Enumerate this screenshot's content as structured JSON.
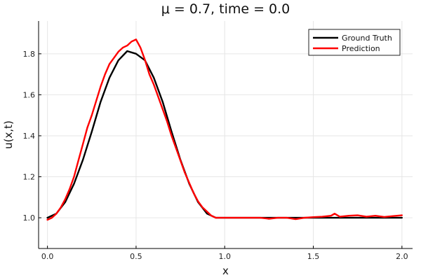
{
  "chart_data": {
    "type": "line",
    "title": "μ = 0.7, time = 0.0",
    "xlabel": "x",
    "ylabel": "u(x,t)",
    "xlim": [
      -0.05,
      2.06
    ],
    "ylim": [
      0.85,
      1.96
    ],
    "xticks": [
      0.0,
      0.5,
      1.0,
      1.5,
      2.0
    ],
    "xtick_labels": [
      "0.0",
      "0.5",
      "1.0",
      "1.5",
      "2.0"
    ],
    "yticks": [
      1.0,
      1.2,
      1.4,
      1.6,
      1.8
    ],
    "ytick_labels": [
      "1.0",
      "1.2",
      "1.4",
      "1.6",
      "1.8"
    ],
    "grid": true,
    "legend_position": "top-right",
    "series": [
      {
        "name": "Ground Truth",
        "color": "#000000",
        "x": [
          0.0,
          0.05,
          0.1,
          0.15,
          0.2,
          0.25,
          0.3,
          0.35,
          0.4,
          0.45,
          0.5,
          0.55,
          0.6,
          0.65,
          0.7,
          0.75,
          0.8,
          0.85,
          0.9,
          0.95,
          1.0,
          1.1,
          1.2,
          1.3,
          1.4,
          1.5,
          1.6,
          1.7,
          1.8,
          1.9,
          2.0
        ],
        "values": [
          1.0,
          1.02,
          1.076,
          1.166,
          1.283,
          1.42,
          1.566,
          1.683,
          1.768,
          1.813,
          1.8,
          1.768,
          1.683,
          1.566,
          1.42,
          1.283,
          1.166,
          1.076,
          1.02,
          1.0,
          1.0,
          1.0,
          1.0,
          1.0,
          1.0,
          1.0,
          1.0,
          1.0,
          1.0,
          1.0,
          1.0
        ]
      },
      {
        "name": "Prediction",
        "color": "#ff0000",
        "x": [
          0.0,
          0.025,
          0.05,
          0.075,
          0.1,
          0.125,
          0.15,
          0.175,
          0.2,
          0.225,
          0.25,
          0.275,
          0.3,
          0.325,
          0.35,
          0.375,
          0.4,
          0.425,
          0.45,
          0.475,
          0.5,
          0.525,
          0.55,
          0.575,
          0.6,
          0.625,
          0.65,
          0.675,
          0.7,
          0.725,
          0.75,
          0.775,
          0.8,
          0.825,
          0.85,
          0.875,
          0.9,
          0.925,
          0.95,
          0.975,
          1.0,
          1.05,
          1.1,
          1.15,
          1.2,
          1.25,
          1.3,
          1.35,
          1.4,
          1.45,
          1.5,
          1.55,
          1.6,
          1.62,
          1.65,
          1.7,
          1.75,
          1.8,
          1.85,
          1.9,
          1.95,
          2.0
        ],
        "values": [
          0.99,
          1.0,
          1.02,
          1.05,
          1.09,
          1.14,
          1.2,
          1.28,
          1.36,
          1.44,
          1.5,
          1.57,
          1.64,
          1.7,
          1.75,
          1.78,
          1.81,
          1.83,
          1.84,
          1.86,
          1.87,
          1.83,
          1.77,
          1.7,
          1.65,
          1.59,
          1.53,
          1.47,
          1.4,
          1.34,
          1.28,
          1.22,
          1.17,
          1.12,
          1.08,
          1.05,
          1.03,
          1.01,
          1.0,
          1.0,
          1.0,
          1.0,
          1.0,
          1.0,
          1.0,
          0.995,
          1.0,
          1.0,
          0.993,
          1.0,
          1.003,
          1.005,
          1.01,
          1.02,
          1.005,
          1.01,
          1.012,
          1.005,
          1.01,
          1.004,
          1.008,
          1.012
        ]
      }
    ]
  }
}
